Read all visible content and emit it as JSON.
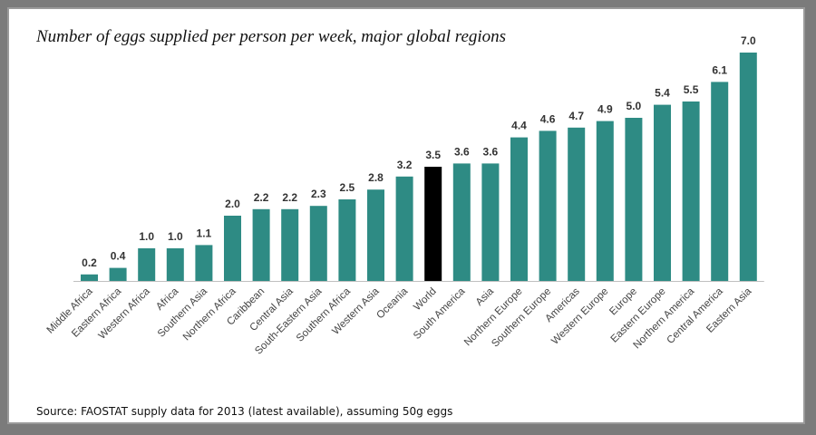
{
  "title": "Number of eggs supplied per person per week, major global regions",
  "source": "Source: FAOSTAT supply data for 2013 (latest available), assuming 50g eggs",
  "colors": {
    "bar": "#2e8b84",
    "highlight": "#000000",
    "axis": "#bfbfbf"
  },
  "chart_data": {
    "type": "bar",
    "title": "Number of eggs supplied per person per week, major global regions",
    "xlabel": "",
    "ylabel": "",
    "ylim": [
      0,
      7.0
    ],
    "grid": false,
    "legend": "none",
    "highlight_category": "World",
    "categories": [
      "Middle Africa",
      "Eastern Africa",
      "Western Africa",
      "Africa",
      "Southern Asia",
      "Northern Africa",
      "Caribbean",
      "Central Asia",
      "South-Eastern Asia",
      "Southern Africa",
      "Western Asia",
      "Oceania",
      "World",
      "South America",
      "Asia",
      "Northern Europe",
      "Southern Europe",
      "Americas",
      "Western Europe",
      "Europe",
      "Eastern Europe",
      "Northern America",
      "Central America",
      "Eastern Asia"
    ],
    "values": [
      0.2,
      0.4,
      1.0,
      1.0,
      1.1,
      2.0,
      2.2,
      2.2,
      2.3,
      2.5,
      2.8,
      3.2,
      3.5,
      3.6,
      3.6,
      4.4,
      4.6,
      4.7,
      4.9,
      5.0,
      5.4,
      5.5,
      6.1,
      7.0
    ],
    "value_labels": [
      "0.2",
      "0.4",
      "1.0",
      "1.0",
      "1.1",
      "2.0",
      "2.2",
      "2.2",
      "2.3",
      "2.5",
      "2.8",
      "3.2",
      "3.5",
      "3.6",
      "3.6",
      "4.4",
      "4.6",
      "4.7",
      "4.9",
      "5.0",
      "5.4",
      "5.5",
      "6.1",
      "7.0"
    ]
  }
}
